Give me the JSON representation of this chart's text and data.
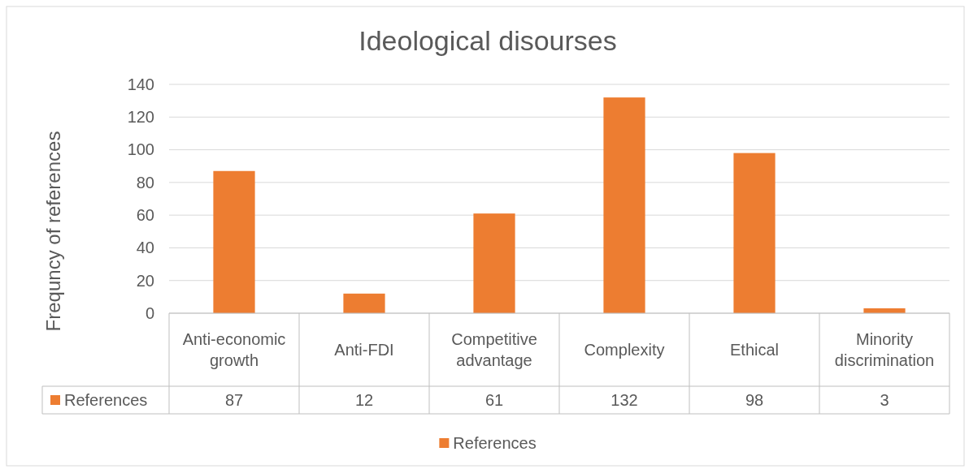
{
  "chart_data": {
    "type": "bar",
    "title": "Ideological disourses",
    "ylabel": "Frequncy of references",
    "categories": [
      "Anti-economic growth",
      "Anti-FDI",
      "Competitive advantage",
      "Complexity",
      "Ethical",
      "Minority discrimination"
    ],
    "series": [
      {
        "name": "References",
        "color": "#ed7d31",
        "values": [
          87,
          12,
          61,
          132,
          98,
          3
        ]
      }
    ],
    "ylim": [
      0,
      140
    ],
    "yticks": [
      0,
      20,
      40,
      60,
      80,
      100,
      120,
      140
    ],
    "grid": "y",
    "legend": "bottom",
    "data_labels": true
  }
}
